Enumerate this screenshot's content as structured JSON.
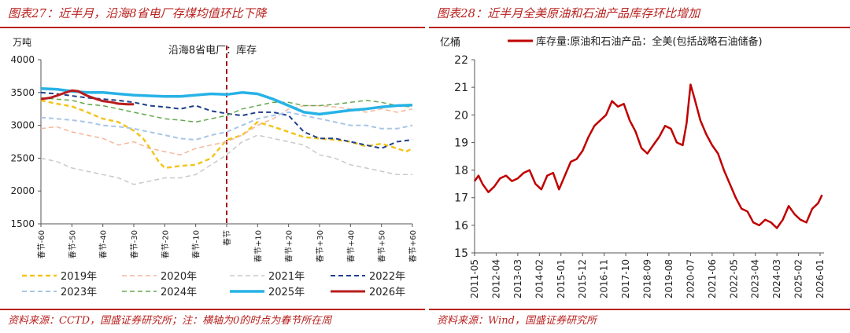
{
  "left": {
    "figure_title": "图表27：近半月，沿海8省电厂存煤均值环比下降",
    "source": "资料来源：CCTD，国盛证券研究所；注：横轴为0的时点为春节所在周",
    "chart_data": {
      "type": "line",
      "title": "沿海8省电厂：库存",
      "ylabel": "万吨",
      "xlabel": "",
      "ylim": [
        1500,
        4000
      ],
      "yticks": [
        1500,
        2000,
        2500,
        3000,
        3500,
        4000
      ],
      "xlim": [
        -60,
        60
      ],
      "xticks": [
        -60,
        -50,
        -40,
        -30,
        -20,
        -10,
        0,
        10,
        20,
        30,
        40,
        50,
        60
      ],
      "xtick_labels": [
        "春节-60",
        "春节-50",
        "春节-40",
        "春节-30",
        "春节-20",
        "春节-10",
        "春节",
        "春节+10",
        "春节+20",
        "春节+30",
        "春节+40",
        "春节+50",
        "春节+60"
      ],
      "reference_line_x": 0,
      "grid": false,
      "legend_position": "bottom",
      "series": [
        {
          "name": "2019年",
          "color": "#f2c51c",
          "dash": "dash",
          "width": 2.5,
          "x": [
            -60,
            -55,
            -50,
            -45,
            -40,
            -35,
            -30,
            -27,
            -24,
            -22,
            -20,
            -15,
            -10,
            -5,
            0,
            5,
            10,
            15,
            20,
            25,
            30,
            35,
            40,
            45,
            50,
            55,
            58,
            60
          ],
          "y": [
            3380,
            3330,
            3290,
            3200,
            3100,
            3050,
            2920,
            2800,
            2600,
            2450,
            2350,
            2380,
            2400,
            2500,
            2780,
            2850,
            3050,
            2980,
            2900,
            2820,
            2800,
            2780,
            2750,
            2680,
            2720,
            2650,
            2600,
            2650
          ]
        },
        {
          "name": "2020年",
          "color": "#f4b79a",
          "dash": "dash",
          "width": 1.5,
          "x": [
            -60,
            -55,
            -50,
            -45,
            -40,
            -35,
            -30,
            -25,
            -20,
            -15,
            -10,
            -5,
            0,
            5,
            10,
            15,
            20,
            25,
            30,
            35,
            40,
            45,
            50,
            55,
            60
          ],
          "y": [
            2950,
            2980,
            2900,
            2850,
            2800,
            2700,
            2750,
            2650,
            2600,
            2550,
            2650,
            2700,
            2750,
            2850,
            3000,
            3100,
            3250,
            3300,
            3300,
            3280,
            3250,
            3200,
            3250,
            3200,
            3250
          ]
        },
        {
          "name": "2021年",
          "color": "#c9c9c9",
          "dash": "dash",
          "width": 1.5,
          "x": [
            -60,
            -55,
            -50,
            -45,
            -40,
            -35,
            -30,
            -25,
            -20,
            -15,
            -10,
            -5,
            0,
            5,
            10,
            15,
            20,
            25,
            30,
            35,
            40,
            45,
            50,
            55,
            60
          ],
          "y": [
            2500,
            2450,
            2350,
            2300,
            2250,
            2200,
            2100,
            2150,
            2200,
            2200,
            2250,
            2400,
            2550,
            2750,
            2850,
            2800,
            2750,
            2700,
            2550,
            2500,
            2400,
            2350,
            2300,
            2250,
            2250
          ]
        },
        {
          "name": "2022年",
          "color": "#1e3f8c",
          "dash": "dash",
          "width": 2,
          "x": [
            -60,
            -55,
            -50,
            -45,
            -40,
            -35,
            -30,
            -25,
            -20,
            -15,
            -10,
            -5,
            0,
            5,
            10,
            15,
            20,
            25,
            30,
            35,
            40,
            45,
            50,
            55,
            60
          ],
          "y": [
            3500,
            3480,
            3450,
            3420,
            3400,
            3380,
            3350,
            3300,
            3280,
            3250,
            3300,
            3220,
            3180,
            3150,
            3200,
            3200,
            3150,
            2900,
            2800,
            2800,
            2750,
            2700,
            2650,
            2750,
            2780
          ]
        },
        {
          "name": "2023年",
          "color": "#a9c6e6",
          "dash": "dash",
          "width": 2,
          "x": [
            -60,
            -55,
            -50,
            -45,
            -40,
            -35,
            -30,
            -25,
            -20,
            -15,
            -10,
            -5,
            0,
            5,
            10,
            15,
            20,
            25,
            30,
            35,
            40,
            45,
            50,
            55,
            60
          ],
          "y": [
            3120,
            3100,
            3080,
            3050,
            3000,
            2980,
            2950,
            2900,
            2850,
            2800,
            2780,
            2850,
            2900,
            3000,
            3100,
            3150,
            3200,
            3150,
            3100,
            3050,
            3000,
            3000,
            2950,
            2950,
            3000
          ]
        },
        {
          "name": "2024年",
          "color": "#63a84d",
          "dash": "dash",
          "width": 1.5,
          "x": [
            -60,
            -55,
            -50,
            -45,
            -40,
            -35,
            -30,
            -25,
            -20,
            -15,
            -10,
            -5,
            0,
            5,
            10,
            15,
            20,
            25,
            30,
            35,
            40,
            45,
            50,
            55,
            60
          ],
          "y": [
            3420,
            3400,
            3380,
            3320,
            3300,
            3250,
            3200,
            3150,
            3100,
            3080,
            3050,
            3100,
            3150,
            3250,
            3300,
            3350,
            3350,
            3300,
            3300,
            3320,
            3350,
            3380,
            3350,
            3300,
            3280
          ]
        },
        {
          "name": "2025年",
          "color": "#27b2e6",
          "dash": "solid",
          "width": 3.5,
          "x": [
            -60,
            -55,
            -50,
            -45,
            -40,
            -35,
            -30,
            -25,
            -20,
            -15,
            -10,
            -5,
            0,
            5,
            10,
            15,
            20,
            25,
            30,
            35,
            40,
            45,
            50,
            55,
            60
          ],
          "y": [
            3560,
            3550,
            3520,
            3500,
            3500,
            3480,
            3460,
            3450,
            3440,
            3440,
            3460,
            3480,
            3470,
            3500,
            3480,
            3400,
            3300,
            3200,
            3170,
            3200,
            3230,
            3250,
            3280,
            3300,
            3310
          ]
        },
        {
          "name": "2026年",
          "color": "#b81c1c",
          "dash": "solid",
          "width": 3,
          "x": [
            -60,
            -57,
            -55,
            -52,
            -50,
            -48,
            -45,
            -42,
            -40,
            -37,
            -35,
            -32,
            -30
          ],
          "y": [
            3400,
            3420,
            3450,
            3500,
            3530,
            3520,
            3450,
            3400,
            3370,
            3350,
            3330,
            3320,
            3320
          ]
        }
      ]
    }
  },
  "right": {
    "figure_title": "图表28：近半月全美原油和石油产品库存环比增加",
    "source": "资料来源：Wind，国盛证券研究所",
    "chart_data": {
      "type": "line",
      "title": "",
      "ylabel": "亿桶",
      "xlabel": "",
      "ylim": [
        15,
        22
      ],
      "yticks": [
        15,
        16,
        17,
        18,
        19,
        20,
        21,
        22
      ],
      "xlim": [
        "2011-05",
        "2026-03"
      ],
      "xtick_labels": [
        "2011-05",
        "2012-04",
        "2013-03",
        "2014-02",
        "2015-01",
        "2015-12",
        "2016-11",
        "2017-10",
        "2018-09",
        "2019-08",
        "2020-07",
        "2021-06",
        "2022-05",
        "2023-04",
        "2024-03",
        "2025-02",
        "2026-01"
      ],
      "grid": false,
      "legend_position": "top",
      "series": [
        {
          "name": "库存量:原油和石油产品：全美(包括战略石油储备)",
          "color": "#c00000",
          "width": 2.5,
          "x": [
            "2011-05",
            "2011-07",
            "2011-09",
            "2011-12",
            "2012-03",
            "2012-06",
            "2012-09",
            "2012-12",
            "2013-03",
            "2013-06",
            "2013-09",
            "2013-12",
            "2014-03",
            "2014-06",
            "2014-09",
            "2014-12",
            "2015-03",
            "2015-06",
            "2015-09",
            "2015-12",
            "2016-03",
            "2016-06",
            "2016-09",
            "2016-12",
            "2017-03",
            "2017-06",
            "2017-09",
            "2017-12",
            "2018-03",
            "2018-06",
            "2018-09",
            "2018-12",
            "2019-03",
            "2019-06",
            "2019-09",
            "2019-12",
            "2020-03",
            "2020-05",
            "2020-07",
            "2020-09",
            "2020-12",
            "2021-03",
            "2021-06",
            "2021-09",
            "2021-12",
            "2022-03",
            "2022-06",
            "2022-09",
            "2022-12",
            "2023-03",
            "2023-06",
            "2023-09",
            "2023-12",
            "2024-03",
            "2024-06",
            "2024-09",
            "2024-12",
            "2025-03",
            "2025-06",
            "2025-09",
            "2025-12",
            "2026-02"
          ],
          "y": [
            17.6,
            17.8,
            17.5,
            17.2,
            17.4,
            17.7,
            17.8,
            17.6,
            17.7,
            17.9,
            18.0,
            17.5,
            17.3,
            17.8,
            17.9,
            17.3,
            17.8,
            18.3,
            18.4,
            18.7,
            19.2,
            19.6,
            19.8,
            20.0,
            20.5,
            20.3,
            20.4,
            19.8,
            19.4,
            18.8,
            18.6,
            18.9,
            19.2,
            19.6,
            19.5,
            19.0,
            18.9,
            19.7,
            21.1,
            20.6,
            19.8,
            19.3,
            18.9,
            18.6,
            18.0,
            17.5,
            17.0,
            16.6,
            16.5,
            16.1,
            16.0,
            16.2,
            16.1,
            15.9,
            16.2,
            16.7,
            16.4,
            16.2,
            16.1,
            16.6,
            16.8,
            17.1
          ]
        }
      ]
    }
  }
}
